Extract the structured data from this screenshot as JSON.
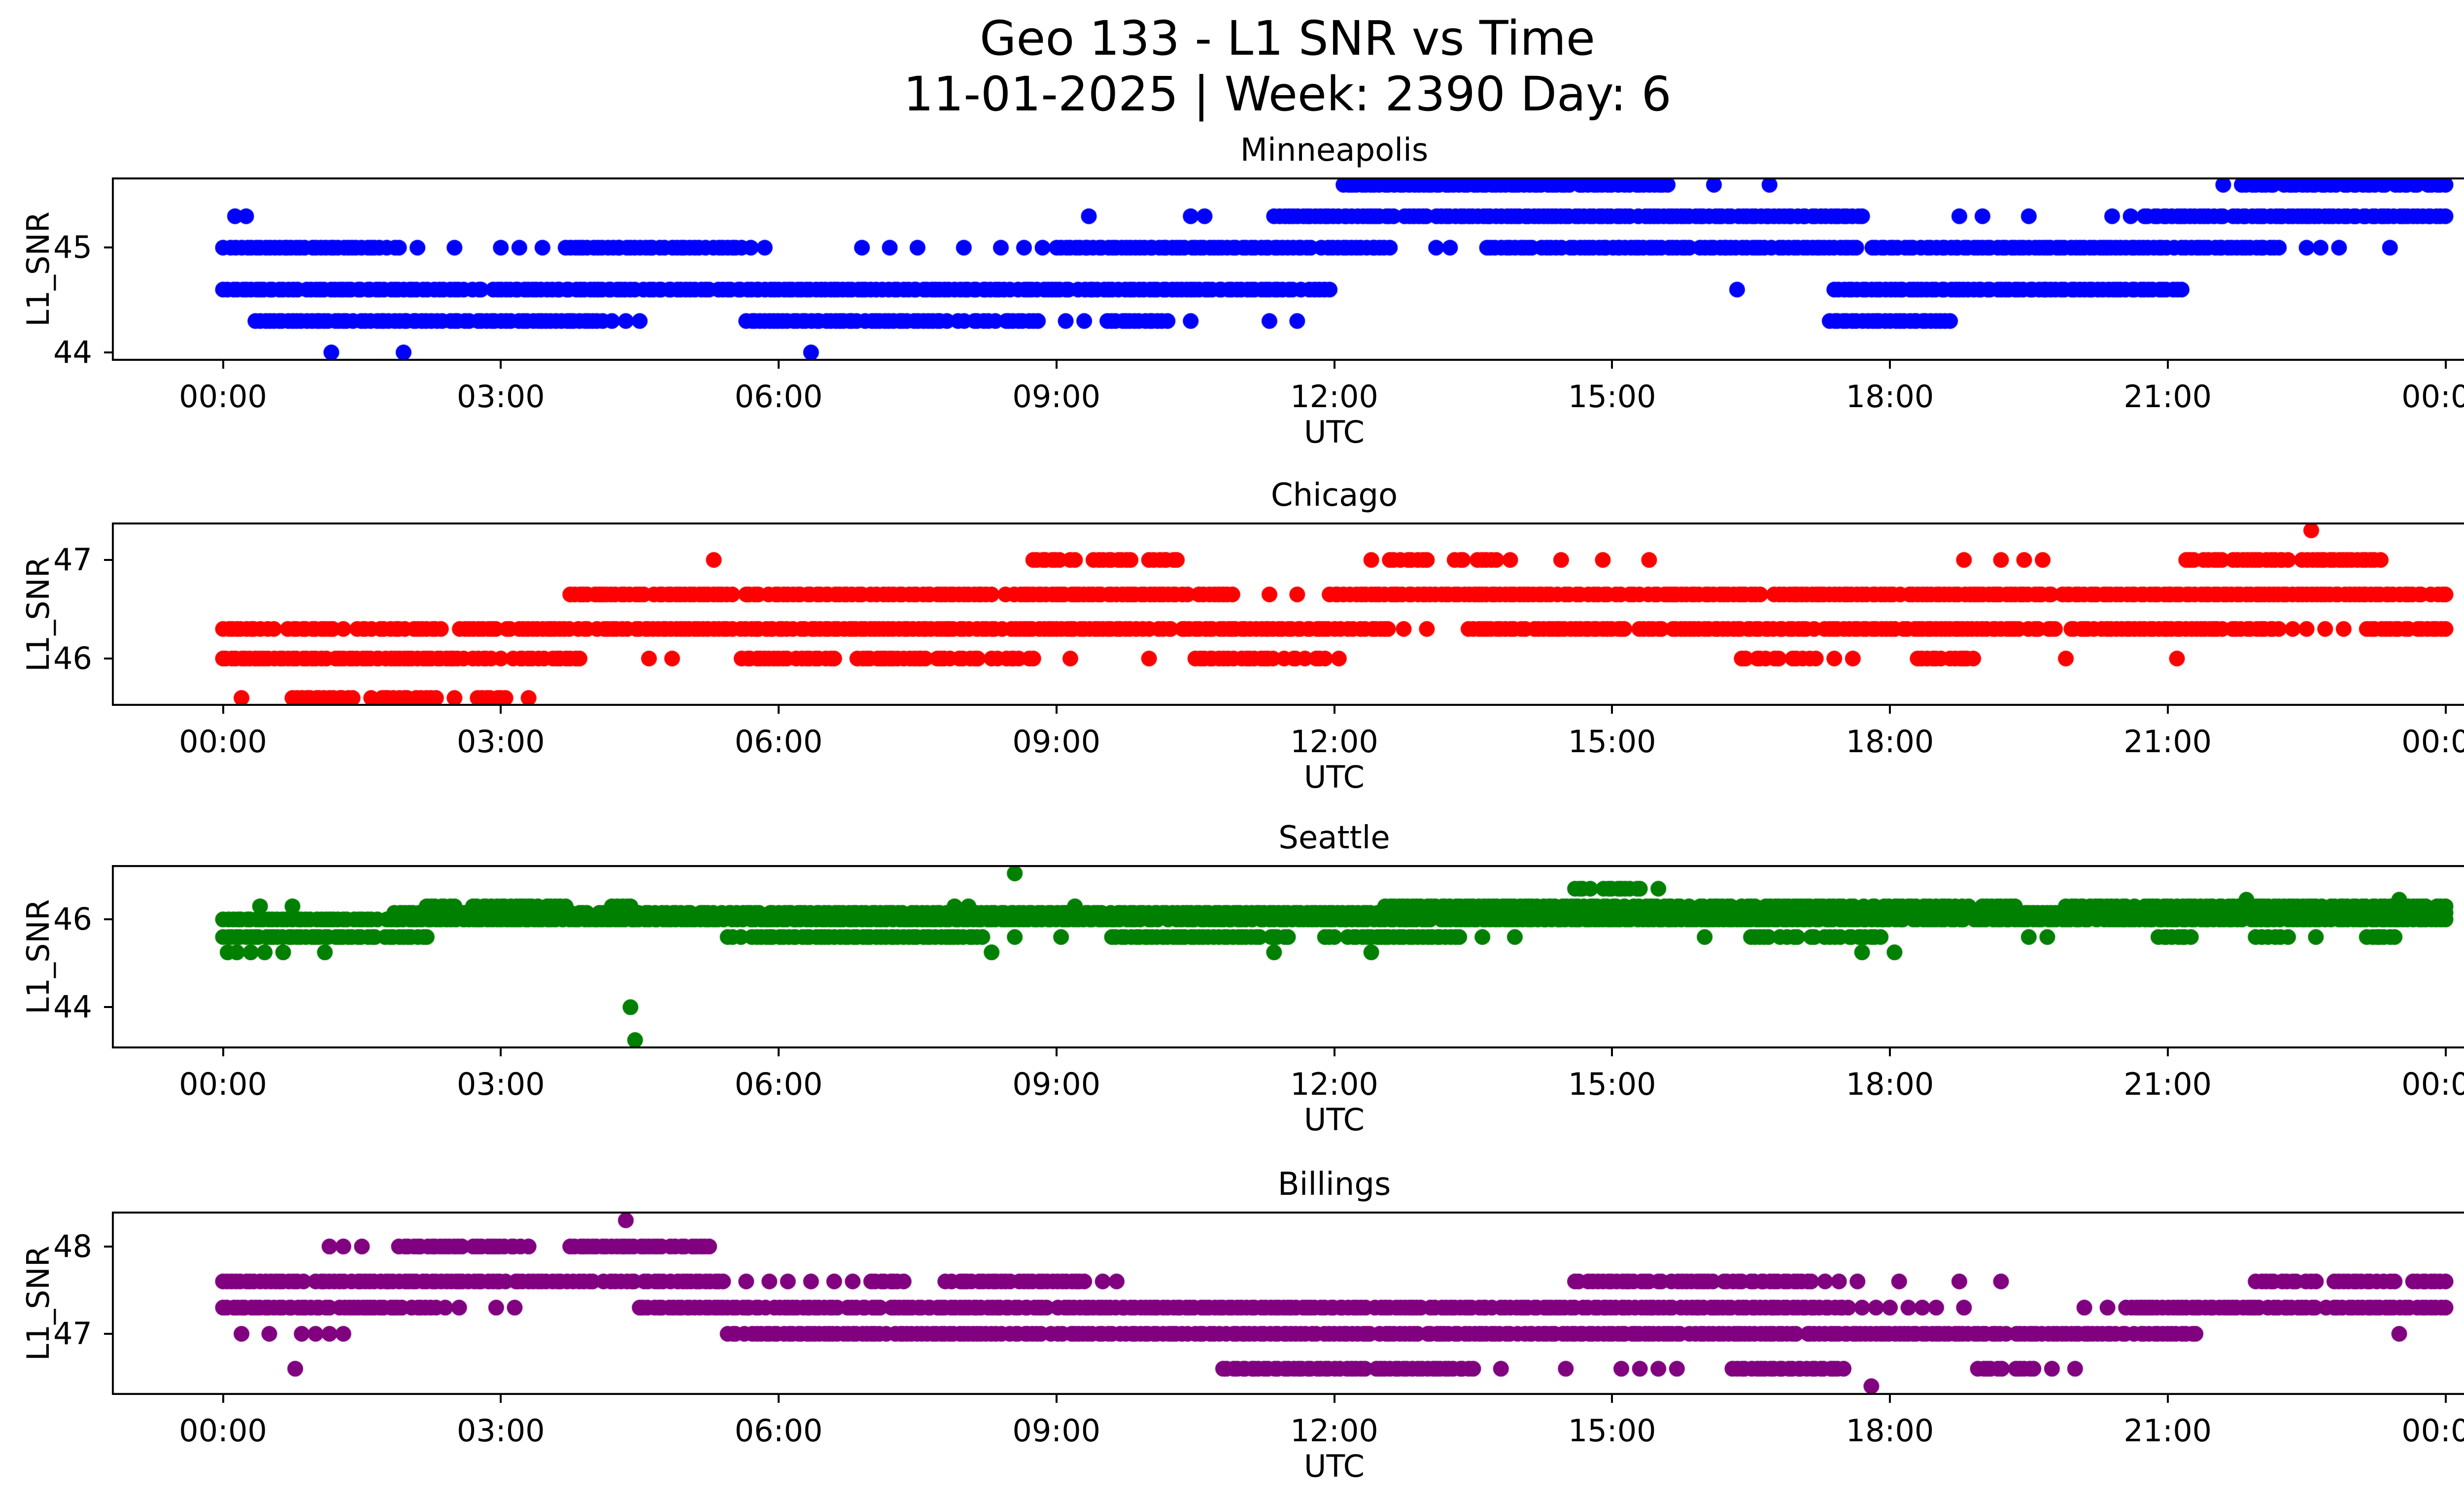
{
  "figure": {
    "suptitle_line1": "Geo 133 - L1 SNR vs Time",
    "suptitle_line2": "11-01-2025 | Week: 2390 Day: 6",
    "background_color": "#ffffff",
    "text_color": "#000000",
    "xlabel": "UTC",
    "ylabel": "L1_SNR",
    "xtick_hours": [
      0,
      3,
      6,
      9,
      12,
      15,
      18,
      21,
      24
    ],
    "xtick_labels": [
      "00:00",
      "03:00",
      "06:00",
      "09:00",
      "12:00",
      "15:00",
      "18:00",
      "21:00",
      "00:00"
    ],
    "xlim": [
      -1.2,
      25.2
    ]
  },
  "chart_data": [
    {
      "type": "scatter",
      "title": "Minneapolis",
      "color": "#0000ff",
      "xlabel": "UTC",
      "ylabel": "L1_SNR",
      "x_units": "hours UTC",
      "xlim": [
        -1.2,
        25.2
      ],
      "ylim": [
        43.92,
        45.67
      ],
      "yticks": [
        44,
        45
      ],
      "ytick_labels": [
        "44",
        "45"
      ],
      "levels": [
        {
          "snr": 45.6,
          "segments": [
            [
              12.1,
              15.6
            ],
            [
              21.8,
              24.0
            ]
          ],
          "dots": [
            16.1,
            16.7,
            21.6
          ]
        },
        {
          "snr": 45.3,
          "segments": [
            [
              11.35,
              17.7
            ],
            [
              20.75,
              24.0
            ]
          ],
          "dots": [
            0.13,
            0.25,
            9.35,
            10.45,
            10.6,
            18.75,
            19.0,
            19.5,
            20.4,
            20.6
          ]
        },
        {
          "snr": 45.0,
          "segments": [
            [
              0.0,
              1.9
            ],
            [
              3.7,
              5.6
            ],
            [
              8.85,
              12.6
            ],
            [
              13.65,
              22.2
            ]
          ],
          "dots": [
            2.1,
            2.5,
            3.0,
            3.2,
            3.45,
            5.7,
            5.85,
            6.9,
            7.2,
            7.5,
            8.0,
            8.4,
            8.65,
            13.1,
            13.25,
            22.5,
            22.65,
            22.85,
            23.4
          ]
        },
        {
          "snr": 44.6,
          "segments": [
            [
              0.0,
              11.95
            ],
            [
              17.4,
              21.15
            ]
          ],
          "dots": [
            16.35
          ]
        },
        {
          "snr": 44.3,
          "segments": [
            [
              0.35,
              4.1
            ],
            [
              5.65,
              8.8
            ],
            [
              9.55,
              10.2
            ],
            [
              17.35,
              18.65
            ]
          ],
          "dots": [
            4.2,
            4.35,
            4.5,
            9.1,
            9.3,
            10.45,
            11.3,
            11.6
          ]
        },
        {
          "snr": 44.0,
          "segments": [],
          "dots": [
            1.17,
            1.95,
            6.35
          ]
        }
      ]
    },
    {
      "type": "scatter",
      "title": "Chicago",
      "color": "#ff0000",
      "xlabel": "UTC",
      "ylabel": "L1_SNR",
      "x_units": "hours UTC",
      "xlim": [
        -1.2,
        25.2
      ],
      "ylim": [
        45.52,
        47.38
      ],
      "yticks": [
        46,
        47
      ],
      "ytick_labels": [
        "46",
        "47"
      ],
      "levels": [
        {
          "snr": 47.3,
          "segments": [],
          "dots": [
            22.55
          ]
        },
        {
          "snr": 47.0,
          "segments": [
            [
              8.75,
              9.2
            ],
            [
              9.4,
              9.8
            ],
            [
              10.0,
              10.3
            ],
            [
              12.6,
              13.0
            ],
            [
              13.3,
              13.75
            ],
            [
              21.2,
              22.3
            ],
            [
              22.45,
              23.3
            ]
          ],
          "dots": [
            5.3,
            12.4,
            13.9,
            14.45,
            14.9,
            15.4,
            18.8,
            19.2,
            19.45,
            19.65
          ]
        },
        {
          "snr": 46.65,
          "segments": [
            [
              3.75,
              5.5
            ],
            [
              5.65,
              8.3
            ],
            [
              8.45,
              10.9
            ],
            [
              11.95,
              16.6
            ],
            [
              16.75,
              24.0
            ]
          ],
          "dots": [
            11.3,
            11.6
          ]
        },
        {
          "snr": 46.3,
          "segments": [
            [
              0.0,
              0.55
            ],
            [
              0.7,
              1.3
            ],
            [
              1.45,
              3.1
            ],
            [
              3.2,
              12.75
            ],
            [
              13.45,
              22.2
            ],
            [
              23.15,
              23.6
            ],
            [
              23.7,
              24.0
            ]
          ],
          "dots": [
            13.0,
            22.35,
            22.5,
            22.7,
            22.9
          ]
        },
        {
          "snr": 46.0,
          "segments": [
            [
              0.0,
              3.85
            ],
            [
              5.6,
              6.6
            ],
            [
              6.85,
              7.85
            ],
            [
              7.95,
              8.15
            ],
            [
              8.3,
              8.75
            ],
            [
              10.5,
              11.9
            ],
            [
              16.4,
              16.8
            ],
            [
              16.95,
              17.2
            ],
            [
              18.3,
              18.55
            ],
            [
              18.65,
              18.9
            ]
          ],
          "dots": [
            4.6,
            4.85,
            9.15,
            10.0,
            12.05,
            17.4,
            17.6,
            19.9,
            21.1
          ]
        },
        {
          "snr": 45.6,
          "segments": [
            [
              0.75,
              1.4
            ],
            [
              1.6,
              2.3
            ],
            [
              2.75,
              3.05
            ]
          ],
          "dots": [
            0.2,
            2.5,
            3.3
          ]
        }
      ]
    },
    {
      "type": "scatter",
      "title": "Seattle",
      "color": "#008000",
      "xlabel": "UTC",
      "ylabel": "L1_SNR",
      "x_units": "hours UTC",
      "xlim": [
        -1.2,
        25.2
      ],
      "ylim": [
        43.06,
        47.24
      ],
      "yticks": [
        44,
        46
      ],
      "ytick_labels": [
        "44",
        "46"
      ],
      "levels": [
        {
          "snr": 47.05,
          "segments": [],
          "dots": [
            8.55
          ]
        },
        {
          "snr": 46.7,
          "segments": [
            [
              14.6,
              15.3
            ]
          ],
          "dots": [
            15.5
          ]
        },
        {
          "snr": 46.45,
          "segments": [],
          "dots": [
            21.85,
            23.5
          ]
        },
        {
          "snr": 46.3,
          "segments": [
            [
              2.2,
              2.5
            ],
            [
              2.7,
              3.4
            ],
            [
              3.5,
              3.7
            ],
            [
              4.2,
              4.4
            ],
            [
              12.55,
              18.85
            ],
            [
              19.0,
              19.35
            ],
            [
              19.9,
              24.0
            ]
          ],
          "dots": [
            0.4,
            0.75,
            7.9,
            8.05,
            9.2
          ]
        },
        {
          "snr": 46.15,
          "segments": [
            [
              1.85,
              24.0
            ]
          ],
          "dots": []
        },
        {
          "snr": 46.0,
          "segments": [
            [
              0.0,
              24.0
            ]
          ],
          "dots": []
        },
        {
          "snr": 45.6,
          "segments": [
            [
              0.0,
              2.2
            ],
            [
              5.45,
              8.2
            ],
            [
              9.6,
              11.5
            ],
            [
              11.9,
              13.35
            ],
            [
              16.5,
              17.0
            ],
            [
              17.15,
              17.9
            ],
            [
              20.9,
              21.25
            ],
            [
              21.95,
              22.3
            ],
            [
              23.15,
              23.45
            ]
          ],
          "dots": [
            8.55,
            9.05,
            13.6,
            13.95,
            16.0,
            19.5,
            19.7,
            22.6
          ]
        },
        {
          "snr": 45.25,
          "segments": [],
          "dots": [
            0.05,
            0.15,
            0.3,
            0.45,
            0.65,
            1.1,
            8.3,
            11.35,
            12.4,
            17.7,
            18.05
          ]
        },
        {
          "snr": 44.0,
          "segments": [],
          "dots": [
            4.4
          ]
        },
        {
          "snr": 43.25,
          "segments": [],
          "dots": [
            4.45
          ]
        }
      ]
    },
    {
      "type": "scatter",
      "title": "Billings",
      "color": "#800080",
      "xlabel": "UTC",
      "ylabel": "L1_SNR",
      "x_units": "hours UTC",
      "xlim": [
        -1.2,
        25.2
      ],
      "ylim": [
        46.3,
        48.4
      ],
      "yticks": [
        47,
        48
      ],
      "ytick_labels": [
        "47",
        "48"
      ],
      "levels": [
        {
          "snr": 48.3,
          "segments": [],
          "dots": [
            4.35
          ]
        },
        {
          "snr": 48.0,
          "segments": [
            [
              1.9,
              3.3
            ],
            [
              3.75,
              5.25
            ]
          ],
          "dots": [
            1.15,
            1.3,
            1.5
          ]
        },
        {
          "snr": 47.6,
          "segments": [
            [
              0.0,
              5.4
            ],
            [
              7.0,
              7.35
            ],
            [
              7.8,
              8.5
            ],
            [
              8.6,
              9.3
            ],
            [
              14.6,
              15.4
            ],
            [
              15.5,
              16.4
            ],
            [
              16.5,
              17.15
            ],
            [
              21.95,
              22.6
            ],
            [
              22.8,
              23.45
            ],
            [
              23.65,
              24.0
            ]
          ],
          "dots": [
            5.65,
            5.9,
            6.1,
            6.35,
            6.6,
            6.8,
            9.5,
            9.65,
            17.3,
            17.45,
            17.65,
            18.1,
            18.75,
            19.2
          ]
        },
        {
          "snr": 47.3,
          "segments": [
            [
              0.0,
              2.3
            ],
            [
              4.5,
              17.55
            ],
            [
              20.55,
              24.0
            ]
          ],
          "dots": [
            2.4,
            2.55,
            2.95,
            3.15,
            17.7,
            17.85,
            18.0,
            18.2,
            18.35,
            18.5,
            18.8,
            20.1,
            20.35
          ]
        },
        {
          "snr": 47.0,
          "segments": [
            [
              5.45,
              21.3
            ]
          ],
          "dots": [
            0.2,
            0.5,
            0.85,
            1.0,
            1.15,
            1.3,
            23.5
          ]
        },
        {
          "snr": 46.6,
          "segments": [
            [
              10.8,
              13.5
            ],
            [
              16.3,
              17.5
            ],
            [
              18.95,
              19.55
            ]
          ],
          "dots": [
            0.78,
            13.8,
            14.5,
            15.1,
            15.3,
            15.5,
            15.7,
            19.75,
            20.0
          ]
        },
        {
          "snr": 46.4,
          "segments": [],
          "dots": [
            17.8
          ]
        }
      ]
    }
  ]
}
